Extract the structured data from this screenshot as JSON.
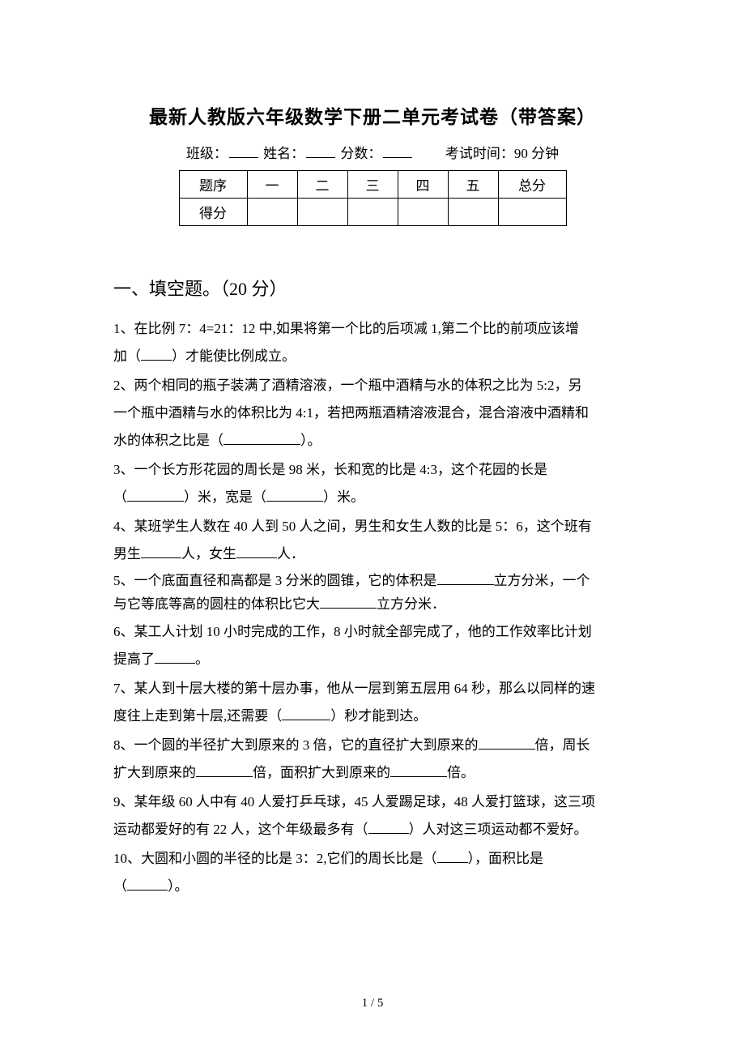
{
  "title": "最新人教版六年级数学下册二单元考试卷（带答案）",
  "header": {
    "class_label": "班级：",
    "name_label": "姓名：",
    "score_label": "分数：",
    "time_label": "考试时间：90 分钟"
  },
  "score_table": {
    "row1": [
      "题序",
      "一",
      "二",
      "三",
      "四",
      "五",
      "总分"
    ],
    "row2_label": "得分"
  },
  "section1_title": "一、填空题。（20 分）",
  "questions": {
    "q1a": "1、在比例 7：4=21：12 中,如果将第一个比的后项减 1,第二个比的前项应该增",
    "q1b_a": "加（",
    "q1b_b": "）才能使比例成立。",
    "q2a": "2、两个相同的瓶子装满了酒精溶液，一个瓶中酒精与水的体积之比为 5:2，另",
    "q2b": "一个瓶中酒精与水的体积比为 4:1，若把两瓶酒精溶液混合，混合溶液中酒精和",
    "q2c_a": "水的体积之比是（",
    "q2c_b": "）。",
    "q3a": "3、一个长方形花园的周长是 98 米，长和宽的比是 4:3，这个花园的长是",
    "q3b_a": "（",
    "q3b_b": "）米，宽是（",
    "q3b_c": "）米。",
    "q4a": "4、某班学生人数在 40 人到 50 人之间，男生和女生人数的比是 5：6，这个班有",
    "q4b_a": "男生",
    "q4b_b": "人，女生",
    "q4b_c": "人．",
    "q5a_a": "5、一个底面直径和高都是 3 分米的圆锥，它的体积是",
    "q5a_b": "立方分米，一个",
    "q5b_a": "与它等底等高的圆柱的体积比它大",
    "q5b_b": "立方分米．",
    "q6a": "6、某工人计划 10 小时完成的工作，8 小时就全部完成了，他的工作效率比计划",
    "q6b_a": "提高了",
    "q6b_b": "。",
    "q7a": "7、某人到十层大楼的第十层办事，他从一层到第五层用 64 秒，那么以同样的速",
    "q7b_a": "度往上走到第十层,还需要（",
    "q7b_b": "）秒才能到达。",
    "q8a_a": "8、一个圆的半径扩大到原来的 3 倍，它的直径扩大到原来的",
    "q8a_b": "倍，周长",
    "q8b_a": "扩大到原来的",
    "q8b_b": "倍，面积扩大到原来的",
    "q8b_c": "倍。",
    "q9a": "9、某年级 60 人中有 40 人爱打乒乓球，45 人爱踢足球，48 人爱打篮球，这三项",
    "q9b_a": "运动都爱好的有 22 人，这个年级最多有（",
    "q9b_b": "）人对这三项运动都不爱好。",
    "q10a_a": "10、大圆和小圆的半径的比是 3：2,它们的周长比是（",
    "q10a_b": "），面积比是",
    "q10b_a": "（",
    "q10b_b": "）。"
  },
  "footer": "1  /  5"
}
